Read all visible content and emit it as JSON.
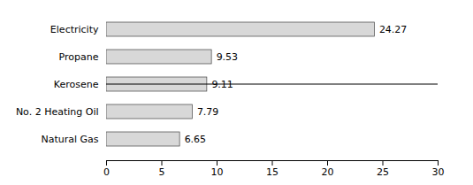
{
  "chart_data": {
    "type": "bar",
    "orientation": "horizontal",
    "categories": [
      "Natural Gas",
      "No. 2 Heating Oil",
      "Kerosene",
      "Propane",
      "Electricity"
    ],
    "values": [
      6.65,
      7.79,
      9.11,
      9.53,
      24.27
    ],
    "color": "#d8d8d8",
    "xlim": [
      0,
      30
    ],
    "xticks": [
      0,
      5,
      10,
      15,
      20,
      25,
      30
    ],
    "data_labels": true,
    "grid": false
  }
}
